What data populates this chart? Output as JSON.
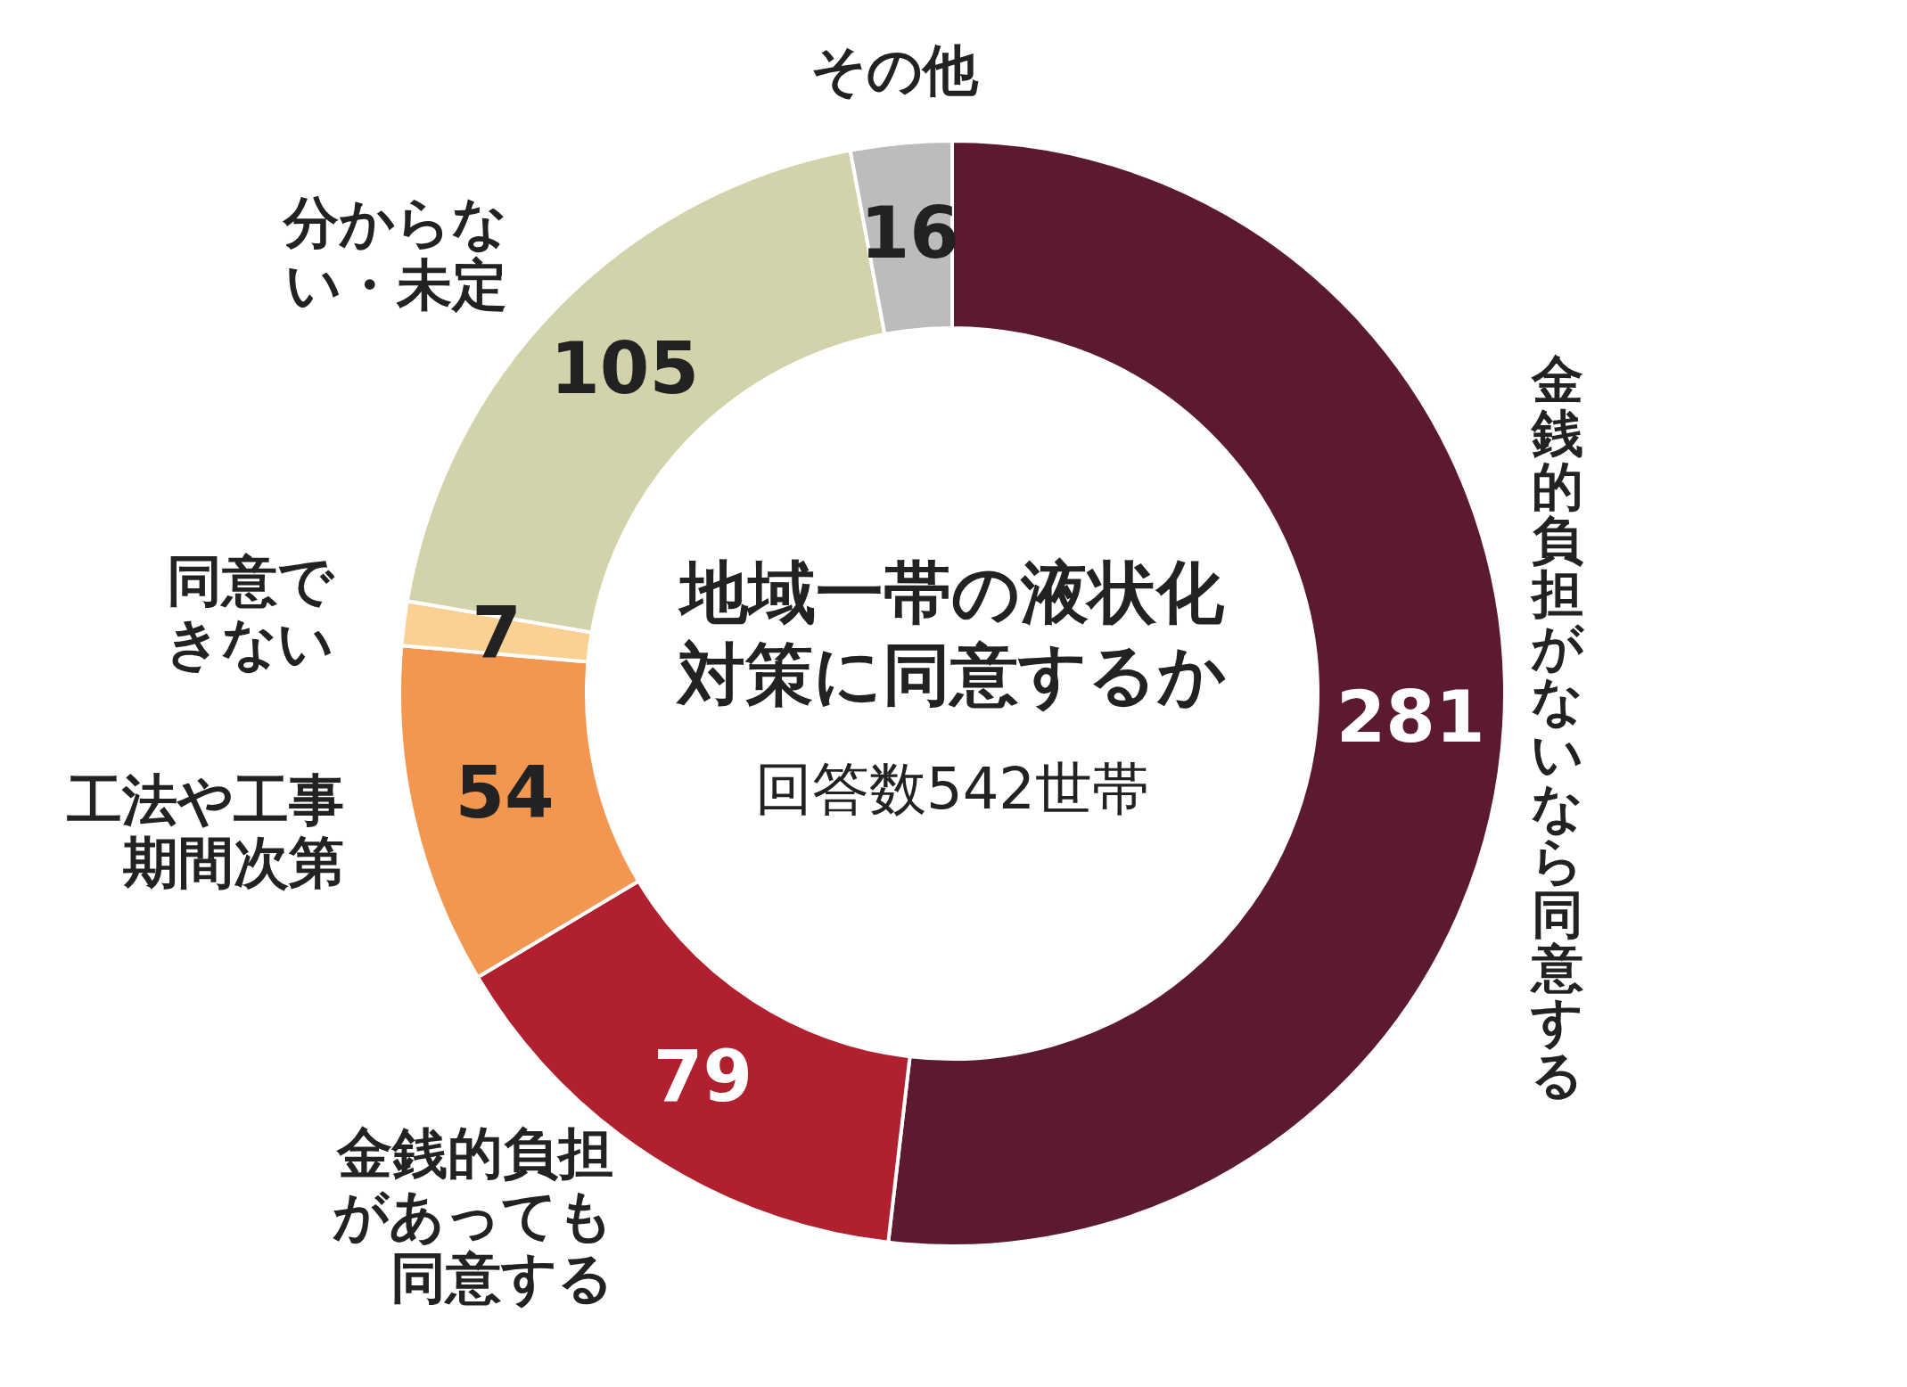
{
  "chart_data": {
    "type": "donut",
    "title": "地域一帯の液状化対策に同意するか",
    "annotations": [
      "回答数542世帯"
    ],
    "categories": [
      "金銭的負担がないなら同意する",
      "金銭的負担があっても同意する",
      "工法や工事期間次第",
      "同意できない",
      "分からない・未定",
      "その他"
    ],
    "values": [
      281,
      79,
      54,
      7,
      105,
      16
    ],
    "colors": [
      "#5c1a2e",
      "#b0202e",
      "#f29650",
      "#fbd193",
      "#d3d3ab",
      "#bcbcbc"
    ],
    "data_labels": true
  }
}
